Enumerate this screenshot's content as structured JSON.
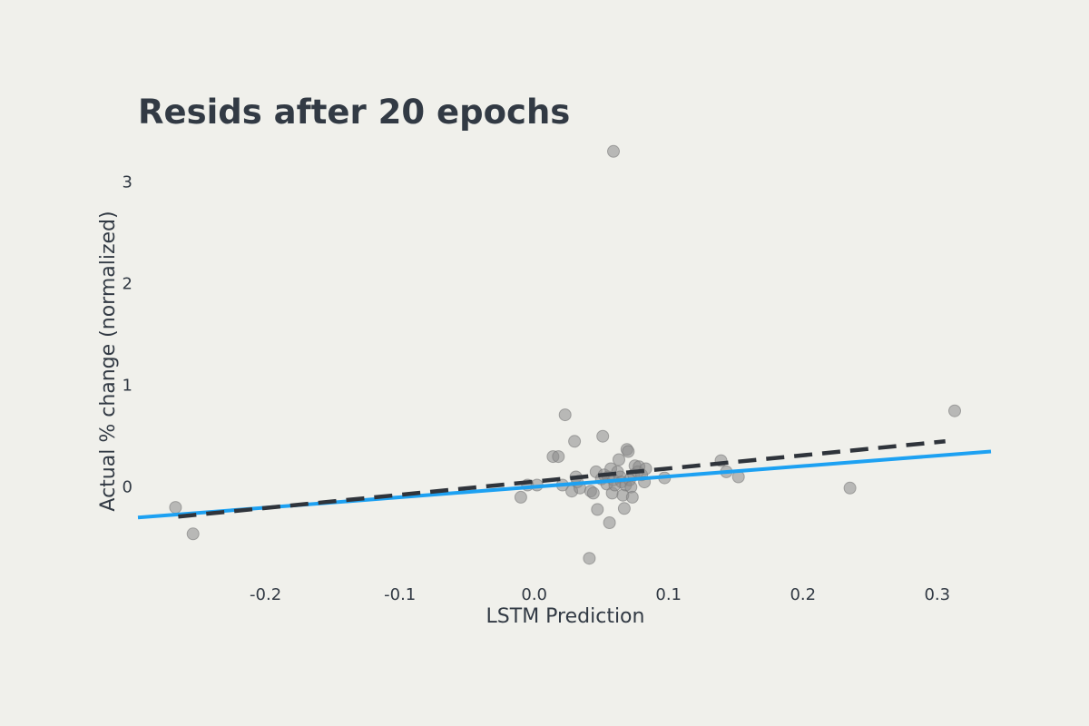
{
  "chart_data": {
    "type": "scatter",
    "title": "Resids after 20 epochs",
    "xlabel": "LSTM Prediction",
    "ylabel": "Actual % change (normalized)",
    "xlim": [
      -0.295,
      0.34
    ],
    "ylim": [
      -0.85,
      3.45
    ],
    "xticks": [
      -0.2,
      -0.1,
      0.0,
      0.1,
      0.2,
      0.3
    ],
    "xtick_labels": [
      "-0.2",
      "-0.1",
      "0.0",
      "0.1",
      "0.2",
      "0.3"
    ],
    "yticks": [
      0,
      1,
      2,
      3
    ],
    "ytick_labels": [
      "0",
      "1",
      "2",
      "3"
    ],
    "grid": false,
    "colors": {
      "points": "#8a8a8a",
      "fit_line": "#1da1f2",
      "dashed_line": "#2f343b",
      "text": "#323a44",
      "background": "#f0f0eb"
    },
    "points": [
      {
        "x": 0.059,
        "y": 3.3
      },
      {
        "x": -0.267,
        "y": -0.2
      },
      {
        "x": -0.254,
        "y": -0.46
      },
      {
        "x": 0.313,
        "y": 0.75
      },
      {
        "x": 0.235,
        "y": -0.01
      },
      {
        "x": 0.023,
        "y": 0.71
      },
      {
        "x": 0.03,
        "y": 0.45
      },
      {
        "x": 0.051,
        "y": 0.5
      },
      {
        "x": 0.041,
        "y": -0.7
      },
      {
        "x": 0.014,
        "y": 0.3
      },
      {
        "x": 0.018,
        "y": 0.3
      },
      {
        "x": -0.01,
        "y": -0.1
      },
      {
        "x": -0.005,
        "y": 0.02
      },
      {
        "x": 0.002,
        "y": 0.02
      },
      {
        "x": 0.021,
        "y": 0.02
      },
      {
        "x": 0.028,
        "y": -0.04
      },
      {
        "x": 0.031,
        "y": 0.1
      },
      {
        "x": 0.032,
        "y": 0.05
      },
      {
        "x": 0.034,
        "y": -0.01
      },
      {
        "x": 0.042,
        "y": -0.04
      },
      {
        "x": 0.044,
        "y": -0.06
      },
      {
        "x": 0.046,
        "y": 0.15
      },
      {
        "x": 0.047,
        "y": -0.22
      },
      {
        "x": 0.05,
        "y": 0.08
      },
      {
        "x": 0.052,
        "y": 0.12
      },
      {
        "x": 0.054,
        "y": 0.03
      },
      {
        "x": 0.055,
        "y": 0.1
      },
      {
        "x": 0.056,
        "y": -0.35
      },
      {
        "x": 0.057,
        "y": 0.18
      },
      {
        "x": 0.058,
        "y": -0.06
      },
      {
        "x": 0.059,
        "y": 0.07
      },
      {
        "x": 0.06,
        "y": 0.02
      },
      {
        "x": 0.062,
        "y": 0.15
      },
      {
        "x": 0.063,
        "y": 0.27
      },
      {
        "x": 0.064,
        "y": 0.1
      },
      {
        "x": 0.065,
        "y": 0.05
      },
      {
        "x": 0.066,
        "y": -0.08
      },
      {
        "x": 0.067,
        "y": -0.21
      },
      {
        "x": 0.068,
        "y": 0.02
      },
      {
        "x": 0.069,
        "y": 0.37
      },
      {
        "x": 0.07,
        "y": 0.35
      },
      {
        "x": 0.071,
        "y": 0.07
      },
      {
        "x": 0.072,
        "y": 0.0
      },
      {
        "x": 0.073,
        "y": -0.1
      },
      {
        "x": 0.074,
        "y": 0.12
      },
      {
        "x": 0.075,
        "y": 0.21
      },
      {
        "x": 0.077,
        "y": 0.15
      },
      {
        "x": 0.078,
        "y": 0.2
      },
      {
        "x": 0.08,
        "y": 0.12
      },
      {
        "x": 0.082,
        "y": 0.05
      },
      {
        "x": 0.083,
        "y": 0.18
      },
      {
        "x": 0.097,
        "y": 0.09
      },
      {
        "x": 0.139,
        "y": 0.26
      },
      {
        "x": 0.143,
        "y": 0.15
      },
      {
        "x": 0.152,
        "y": 0.1
      }
    ],
    "lines": [
      {
        "style": "solid",
        "color": "#1da1f2",
        "x": [
          -0.295,
          0.34
        ],
        "y": [
          -0.3,
          0.35
        ]
      },
      {
        "style": "dashed",
        "color": "#2f343b",
        "x": [
          -0.265,
          0.306
        ],
        "y": [
          -0.29,
          0.45
        ]
      }
    ]
  }
}
